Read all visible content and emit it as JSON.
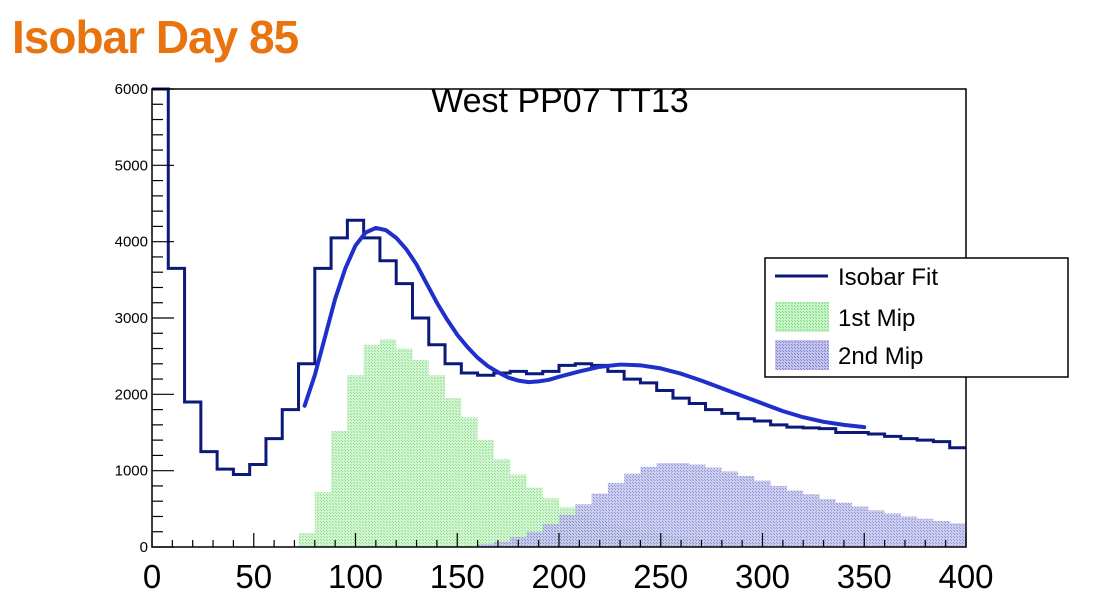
{
  "slide": {
    "title": "Isobar Day 85"
  },
  "colors": {
    "data": "#0b1a7a",
    "fit": "#1f2fcc",
    "mip1": "#9ae69a",
    "mip2": "#8f8fd8",
    "title": "#e8730f"
  },
  "chart_data": {
    "type": "histogram",
    "title": "West PP07 TT13",
    "xlabel": "",
    "ylabel": "",
    "xlim": [
      0,
      400
    ],
    "ylim": [
      0,
      6000
    ],
    "x_ticks": [
      "0",
      "50",
      "100",
      "150",
      "200",
      "250",
      "300",
      "350",
      "400"
    ],
    "y_ticks": [
      "0",
      "1000",
      "2000",
      "3000",
      "4000",
      "5000",
      "6000"
    ],
    "bin_width": 8,
    "bin_low_edges": [
      0,
      8,
      16,
      24,
      32,
      40,
      48,
      56,
      64,
      72,
      80,
      88,
      96,
      104,
      112,
      120,
      128,
      136,
      144,
      152,
      160,
      168,
      176,
      184,
      192,
      200,
      208,
      216,
      224,
      232,
      240,
      248,
      256,
      264,
      272,
      280,
      288,
      296,
      304,
      312,
      320,
      328,
      336,
      344,
      352,
      360,
      368,
      376,
      384,
      392
    ],
    "series": [
      {
        "name": "",
        "style": "step",
        "values": [
          6000,
          3650,
          1900,
          1250,
          1020,
          950,
          1080,
          1420,
          1800,
          2400,
          3650,
          4050,
          4280,
          4050,
          3750,
          3450,
          3000,
          2650,
          2400,
          2280,
          2250,
          2280,
          2300,
          2270,
          2300,
          2380,
          2400,
          2380,
          2300,
          2200,
          2150,
          2050,
          1950,
          1880,
          1800,
          1750,
          1680,
          1650,
          1600,
          1570,
          1560,
          1550,
          1500,
          1500,
          1480,
          1450,
          1420,
          1400,
          1380,
          1300
        ]
      },
      {
        "name": "1st Mip",
        "style": "filled",
        "values": [
          0,
          0,
          0,
          0,
          0,
          0,
          0,
          0,
          0,
          180,
          720,
          1520,
          2250,
          2650,
          2720,
          2600,
          2450,
          2250,
          1950,
          1700,
          1400,
          1150,
          950,
          780,
          640,
          520,
          420,
          350,
          290,
          240,
          200,
          160,
          130,
          110,
          90,
          70,
          60,
          50,
          40,
          30,
          25,
          20,
          15,
          12,
          10,
          8,
          6,
          5,
          4,
          3
        ]
      },
      {
        "name": "2nd Mip",
        "style": "filled",
        "values": [
          0,
          0,
          0,
          0,
          0,
          0,
          0,
          0,
          0,
          0,
          0,
          0,
          0,
          0,
          0,
          0,
          0,
          0,
          0,
          0,
          40,
          70,
          130,
          200,
          300,
          420,
          560,
          700,
          840,
          960,
          1050,
          1100,
          1100,
          1080,
          1040,
          990,
          930,
          870,
          800,
          740,
          690,
          630,
          580,
          530,
          480,
          440,
          400,
          370,
          340,
          310
        ]
      },
      {
        "name": "Isobar Fit",
        "style": "line",
        "x": [
          75,
          80,
          85,
          90,
          95,
          100,
          105,
          110,
          115,
          120,
          125,
          130,
          135,
          140,
          145,
          150,
          155,
          160,
          165,
          170,
          175,
          180,
          185,
          190,
          195,
          200,
          210,
          220,
          230,
          240,
          250,
          260,
          270,
          280,
          290,
          300,
          310,
          320,
          330,
          340,
          350
        ],
        "y": [
          1850,
          2250,
          2750,
          3250,
          3650,
          3950,
          4120,
          4180,
          4150,
          4050,
          3900,
          3700,
          3450,
          3200,
          2980,
          2780,
          2620,
          2480,
          2370,
          2290,
          2220,
          2180,
          2160,
          2170,
          2190,
          2230,
          2300,
          2360,
          2390,
          2380,
          2340,
          2270,
          2180,
          2080,
          1980,
          1880,
          1780,
          1700,
          1640,
          1600,
          1570
        ]
      }
    ],
    "legend": {
      "position": "right",
      "entries": [
        "Isobar Fit",
        "1st Mip",
        "2nd Mip"
      ]
    },
    "grid": false
  }
}
